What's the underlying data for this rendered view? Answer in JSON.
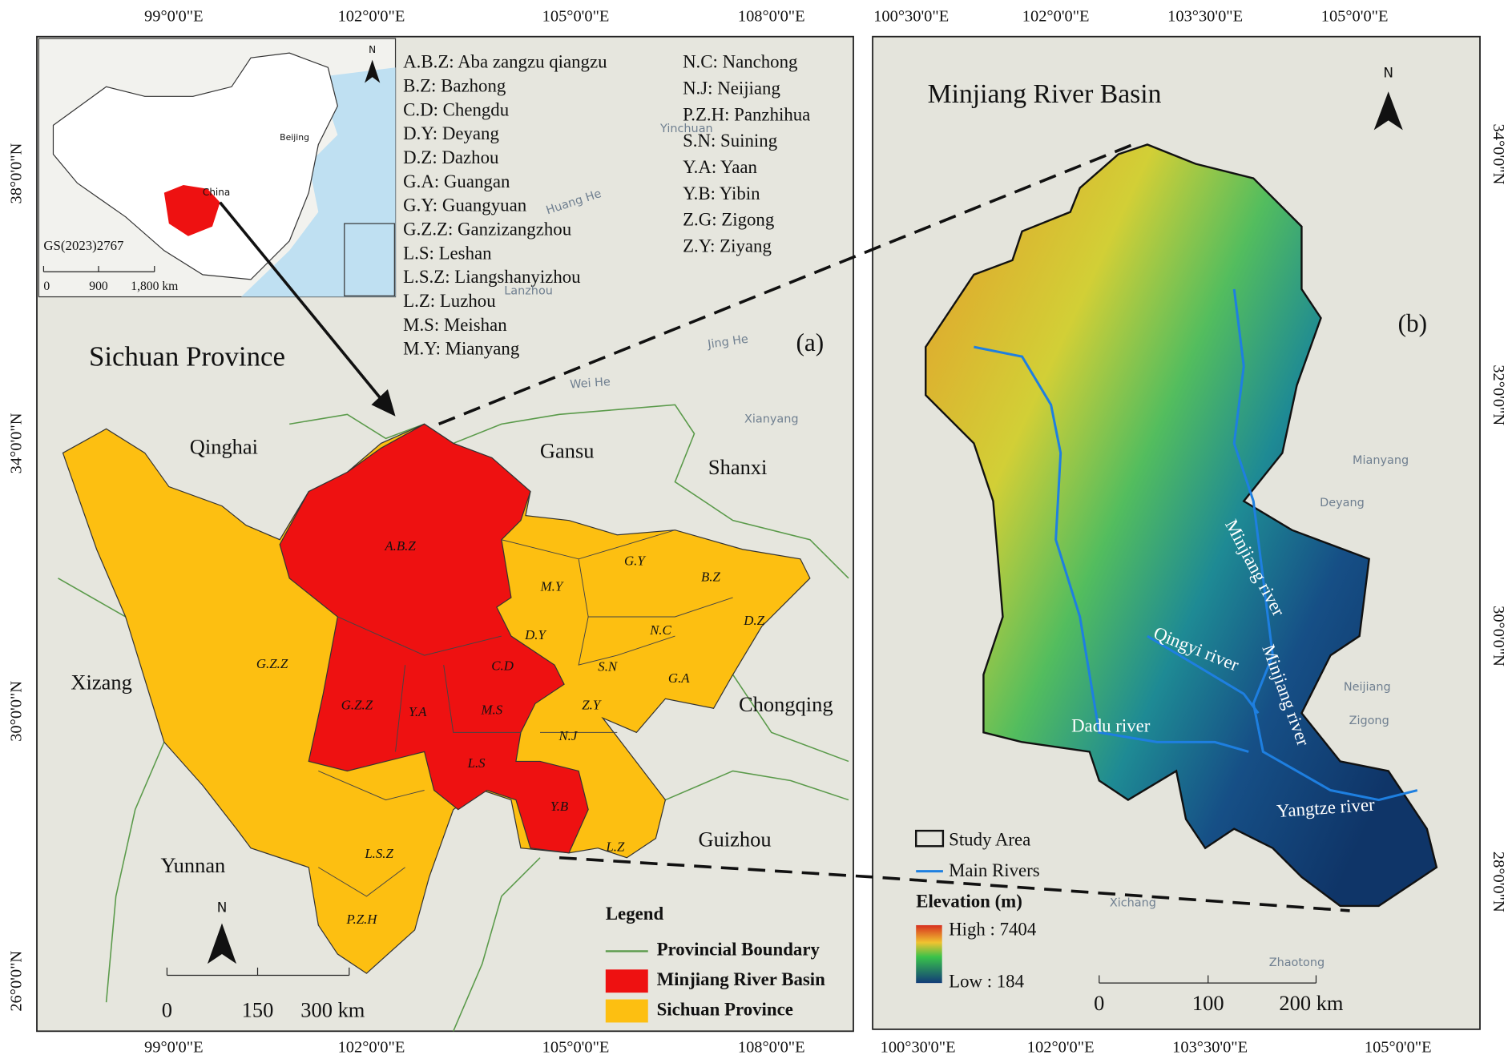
{
  "panel_a": {
    "label": "(a)",
    "title": "Sichuan Province",
    "top_axis": [
      "99°0'0\"E",
      "102°0'0\"E",
      "105°0'0\"E",
      "108°0'0\"E"
    ],
    "bottom_axis": [
      "99°0'0\"E",
      "102°0'0\"E",
      "105°0'0\"E",
      "108°0'0\"E"
    ],
    "left_axis": [
      "38°0'0\"N",
      "34°0'0\"N",
      "30°0'0\"N",
      "26°0'0\"N"
    ],
    "abbreviations": [
      "A.B.Z: Aba zangzu qiangzu",
      "B.Z: Bazhong",
      "C.D: Chengdu",
      "D.Y: Deyang",
      "D.Z: Dazhou",
      "G.A: Guangan",
      "G.Y: Guangyuan",
      "G.Z.Z: Ganzizangzhou",
      "L.S: Leshan",
      "L.S.Z: Liangshanyizhou",
      "L.Z: Luzhou",
      "M.S: Meishan",
      "M.Y: Mianyang",
      "N.C: Nanchong",
      "N.J: Neijiang",
      "P.Z.H: Panzhihua",
      "S.N: Suining",
      "Y.A: Yaan",
      "Y.B: Yibin",
      "Z.G: Zigong",
      "Z.Y: Ziyang"
    ],
    "regions": [
      "A.B.Z",
      "G.Y",
      "B.Z",
      "M.Y",
      "D.Z",
      "N.C",
      "D.Y",
      "G.Z.Z",
      "G.Z.Z",
      "C.D",
      "S.N",
      "G.A",
      "Y.A",
      "M.S",
      "Z.Y",
      "N.J",
      "L.S",
      "Y.B",
      "L.Z",
      "L.S.Z",
      "P.Z.H"
    ],
    "provinces": [
      "Qinghai",
      "Gansu",
      "Shanxi",
      "Xizang",
      "Chongqing",
      "Guizhou",
      "Yunnan"
    ],
    "basemap": [
      "Yinchuan",
      "Lanzhou",
      "Huang He",
      "Jing He",
      "Wei He",
      "Xianyang"
    ],
    "inset": {
      "country": "China",
      "capital": "Beijing",
      "code": "GS(2023)2767",
      "scale": [
        "0",
        "900",
        "1,800 km"
      ],
      "north": "N"
    },
    "legend": {
      "title": "Legend",
      "items": [
        "Provincial Boundary",
        "Minjiang River Basin",
        "Sichuan Province"
      ]
    },
    "scale_bar": [
      "0",
      "150",
      "300 km"
    ],
    "north": "N"
  },
  "panel_b": {
    "label": "(b)",
    "title": "Minjiang River Basin",
    "top_axis": [
      "100°30'0\"E",
      "102°0'0\"E",
      "103°30'0\"E",
      "105°0'0\"E"
    ],
    "bottom_axis": [
      "100°30'0\"E",
      "102°0'0\"E",
      "103°30'0\"E",
      "105°0'0\"E"
    ],
    "right_axis": [
      "34°0'0\"N",
      "32°0'0\"N",
      "30°0'0\"N",
      "28°0'0\"N"
    ],
    "rivers": [
      "Minjiang river",
      "Qingyi river",
      "Minjiang river",
      "Dadu river",
      "Yangtze river"
    ],
    "cities": [
      "Mianyang",
      "Deyang",
      "Neijiang",
      "Zigong",
      "Xichang",
      "Zhaotong"
    ],
    "legend": {
      "items": [
        "Study Area",
        "Main Rivers"
      ],
      "elevation_title": "Elevation (m)",
      "high": "High : 7404",
      "low": "Low : 184"
    },
    "scale_bar": [
      "0",
      "100",
      "200 km"
    ],
    "north": "N"
  }
}
